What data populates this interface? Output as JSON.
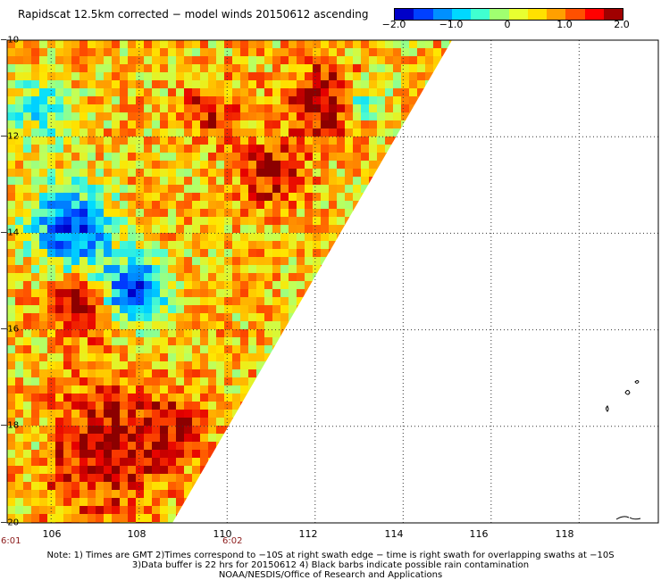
{
  "title": "Rapidscat 12.5km corrected − model winds 20150612 ascending",
  "colorbar": {
    "ticks": [
      "−2.0",
      "−1.0",
      "0",
      "1.0",
      "2.0"
    ],
    "tick_values": [
      -2.0,
      -1.0,
      0,
      1.0,
      2.0
    ],
    "colors": [
      "#0000c8",
      "#0040ff",
      "#0090ff",
      "#00d8ff",
      "#40ffd0",
      "#a0ff70",
      "#e8ff30",
      "#ffe000",
      "#ffa000",
      "#ff5000",
      "#ff0000",
      "#a00000"
    ]
  },
  "lat_labels": [
    "−10",
    "−12",
    "−14",
    "−16",
    "−18",
    "−20"
  ],
  "lat_values": [
    -10,
    -12,
    -14,
    -16,
    -18,
    -20
  ],
  "lon_labels": [
    "106",
    "108",
    "110",
    "112",
    "114",
    "116",
    "118"
  ],
  "lon_values": [
    106,
    108,
    110,
    112,
    114,
    116,
    118
  ],
  "times": [
    "6:01",
    "6:02"
  ],
  "notes": [
    "Note: 1) Times are GMT 2)Times correspond to −10S at right swath edge − time is right swath for overlapping swaths at −10S",
    "3)Data buffer is 22 hrs for 20150612 4) Black barbs indicate possible rain contamination",
    "NOAA/NESDIS/Office of Research and Applications"
  ],
  "map": {
    "lon_range": [
      105.0,
      119.8
    ],
    "lat_range": [
      -20,
      -10
    ],
    "swath_edge": [
      [
        115.2,
        -10
      ],
      [
        108.8,
        -20
      ]
    ],
    "value_range": [
      -2.0,
      2.0
    ]
  }
}
